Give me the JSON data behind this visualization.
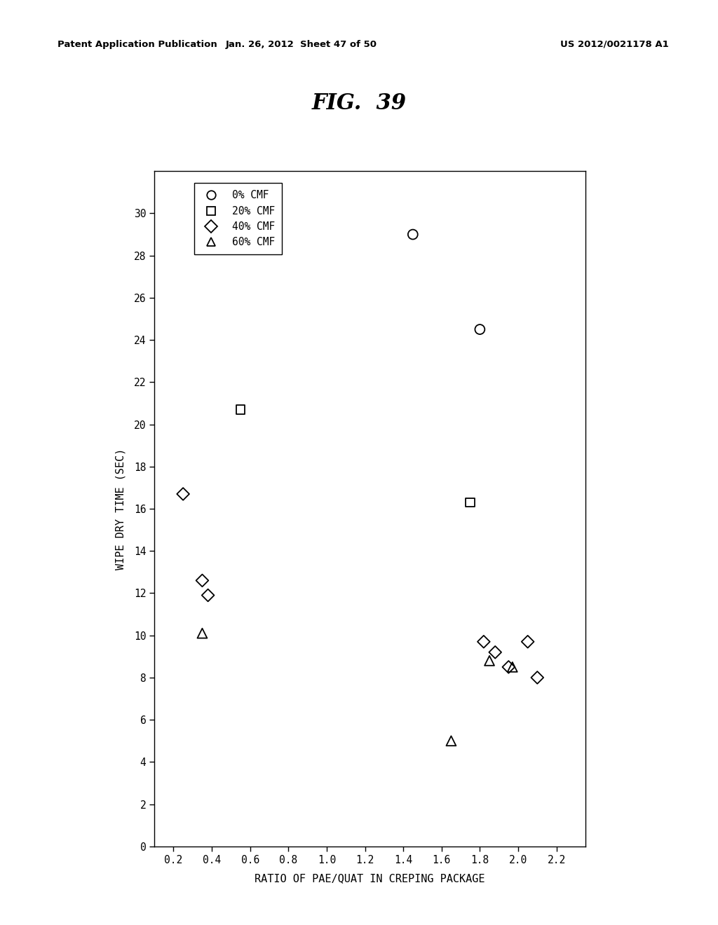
{
  "title": "FIG.  39",
  "xlabel": "RATIO OF PAE/QUAT IN CREPING PACKAGE",
  "ylabel": "WIPE DRY TIME (SEC)",
  "xlim": [
    0.1,
    2.35
  ],
  "ylim": [
    0,
    32
  ],
  "xticks": [
    0.2,
    0.4,
    0.6,
    0.8,
    1.0,
    1.2,
    1.4,
    1.6,
    1.8,
    2.0,
    2.2
  ],
  "yticks": [
    0,
    2,
    4,
    6,
    8,
    10,
    12,
    14,
    16,
    18,
    20,
    22,
    24,
    26,
    28,
    30
  ],
  "header_left": "Patent Application Publication",
  "header_mid": "Jan. 26, 2012  Sheet 47 of 50",
  "header_right": "US 2012/0021178 A1",
  "series": {
    "0% CMF": {
      "marker": "o",
      "x": [
        1.45,
        1.8
      ],
      "y": [
        29.0,
        24.5
      ]
    },
    "20% CMF": {
      "marker": "s",
      "x": [
        0.55,
        1.75
      ],
      "y": [
        20.7,
        16.3
      ]
    },
    "40% CMF": {
      "marker": "D",
      "x": [
        0.25,
        0.35,
        0.38,
        1.82,
        1.88,
        1.95,
        2.05,
        2.1
      ],
      "y": [
        16.7,
        12.6,
        11.9,
        9.7,
        9.2,
        8.5,
        9.7,
        8.0
      ]
    },
    "60% CMF": {
      "marker": "^",
      "x": [
        0.35,
        1.65,
        1.85,
        1.97
      ],
      "y": [
        10.1,
        5.0,
        8.8,
        8.5
      ]
    }
  },
  "legend_labels": [
    "0% CMF",
    "20% CMF",
    "40% CMF",
    "60% CMF"
  ],
  "bg_color": "#ffffff"
}
